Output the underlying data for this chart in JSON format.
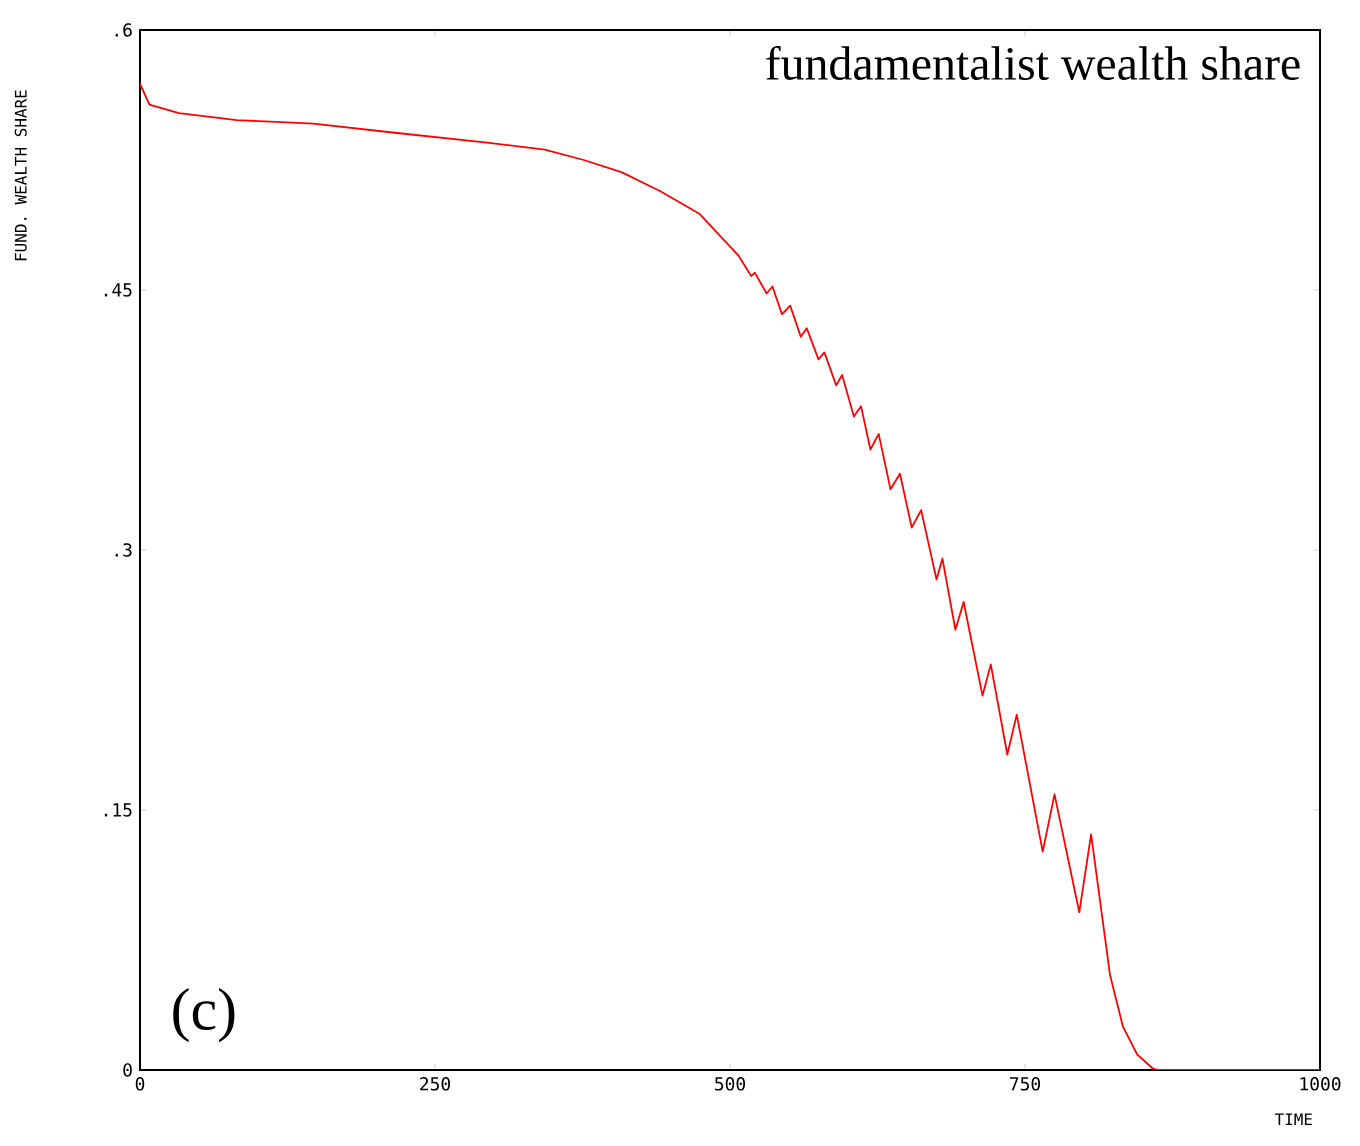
{
  "chart_data": {
    "type": "line",
    "title": "fundamentalist wealth share",
    "ylabel": "FUND. WEALTH SHARE",
    "xlabel": "TIME",
    "annotations": [
      "(c)"
    ],
    "x": [
      0,
      8,
      33,
      82,
      147,
      212,
      294,
      343,
      376,
      408,
      441,
      474,
      507,
      518,
      521,
      531,
      536,
      544,
      551,
      560,
      565,
      575,
      580,
      590,
      595,
      605,
      611,
      619,
      626,
      636,
      644,
      654,
      662,
      675,
      680,
      691,
      698,
      714,
      721,
      735,
      743,
      765,
      775,
      796,
      806,
      822,
      833,
      845,
      858,
      863,
      1000
    ],
    "series": [
      {
        "color": "#ff0000",
        "values": [
          0.569,
          0.557,
          0.552,
          0.548,
          0.546,
          0.541,
          0.535,
          0.531,
          0.525,
          0.518,
          0.507,
          0.494,
          0.47,
          0.458,
          0.46,
          0.448,
          0.452,
          0.436,
          0.441,
          0.423,
          0.428,
          0.41,
          0.414,
          0.395,
          0.401,
          0.377,
          0.383,
          0.358,
          0.367,
          0.335,
          0.344,
          0.313,
          0.323,
          0.283,
          0.295,
          0.254,
          0.27,
          0.216,
          0.234,
          0.182,
          0.205,
          0.126,
          0.159,
          0.091,
          0.136,
          0.055,
          0.025,
          0.009,
          0.001,
          0,
          0
        ]
      }
    ],
    "xlim": [
      0,
      1000
    ],
    "ylim": [
      0,
      0.6
    ],
    "xticks": [
      0,
      250,
      500,
      750,
      1000
    ],
    "yticks": [
      {
        "value": 0,
        "label": "0"
      },
      {
        "value": 0.15,
        "label": ".15"
      },
      {
        "value": 0.3,
        "label": ".3"
      },
      {
        "value": 0.45,
        "label": ".45"
      },
      {
        "value": 0.6,
        "label": ".6"
      }
    ],
    "marker": "none",
    "line_style": "solid"
  }
}
